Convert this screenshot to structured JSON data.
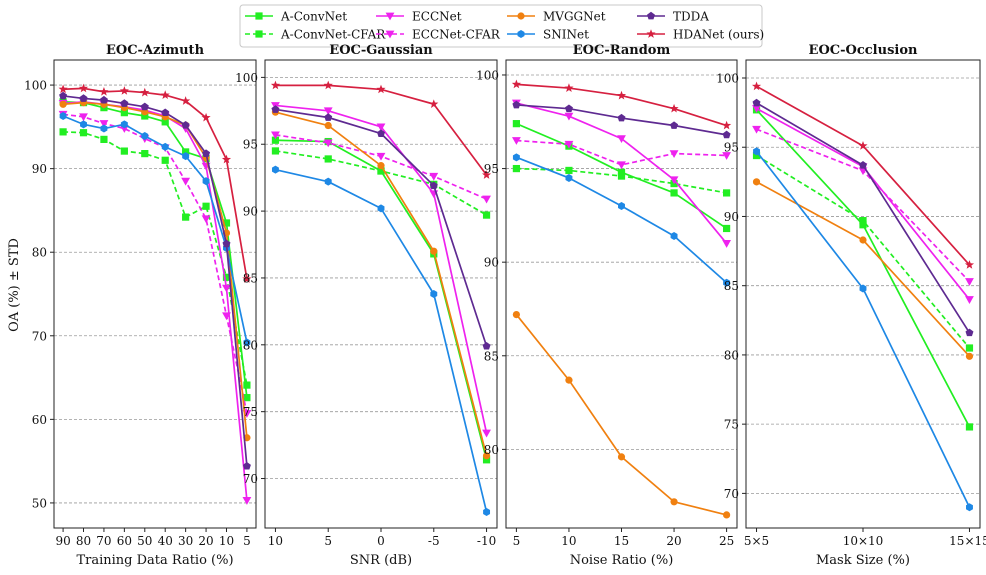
{
  "ylabel": "OA (%) ± STD",
  "legend": {
    "placement": "top-center",
    "columns": 4,
    "entries": [
      {
        "name": "A-ConvNet",
        "color": "#22ee22",
        "dash": false,
        "marker": "square"
      },
      {
        "name": "A-ConvNet-CFAR",
        "color": "#22ee22",
        "dash": true,
        "marker": "square"
      },
      {
        "name": "ECCNet",
        "color": "#ee22ee",
        "dash": false,
        "marker": "triangle-down"
      },
      {
        "name": "ECCNet-CFAR",
        "color": "#ee22ee",
        "dash": true,
        "marker": "triangle-down"
      },
      {
        "name": "MVGGNet",
        "color": "#f08010",
        "dash": false,
        "marker": "circle"
      },
      {
        "name": "SNINet",
        "color": "#1e88e5",
        "dash": false,
        "marker": "hexagon"
      },
      {
        "name": "TDDA",
        "color": "#5e2a91",
        "dash": false,
        "marker": "pentagon"
      },
      {
        "name": "HDANet (ours)",
        "color": "#d62040",
        "dash": false,
        "marker": "star"
      }
    ]
  },
  "chart_data": [
    {
      "type": "line",
      "title": "EOC-Azimuth",
      "xlabel": "Training Data Ratio (%)",
      "ylabel": "OA (%) ± STD",
      "categories": [
        "90",
        "80",
        "70",
        "60",
        "50",
        "40",
        "30",
        "20",
        "10",
        "5"
      ],
      "ylim": [
        47,
        103
      ],
      "yticks": [
        50,
        60,
        70,
        80,
        90,
        100
      ],
      "grid": "y-dashed",
      "series": [
        {
          "name": "A-ConvNet",
          "values": [
            98.0,
            97.9,
            97.3,
            96.7,
            96.3,
            95.6,
            92.0,
            91.2,
            83.5,
            62.6
          ]
        },
        {
          "name": "A-ConvNet-CFAR",
          "values": [
            94.4,
            94.3,
            93.5,
            92.1,
            91.8,
            91.0,
            84.2,
            85.5,
            77.0,
            64.1
          ]
        },
        {
          "name": "ECCNet",
          "values": [
            97.8,
            98.0,
            97.7,
            97.4,
            97.0,
            96.3,
            94.8,
            90.3,
            75.7,
            50.3
          ]
        },
        {
          "name": "ECCNet-CFAR",
          "values": [
            96.5,
            96.2,
            95.4,
            94.8,
            93.6,
            92.5,
            88.5,
            84.0,
            72.4,
            60.7
          ]
        },
        {
          "name": "MVGGNet",
          "values": [
            97.7,
            97.9,
            97.7,
            97.3,
            96.8,
            96.2,
            95.2,
            91.3,
            82.3,
            57.8
          ]
        },
        {
          "name": "SNINet",
          "values": [
            96.3,
            95.3,
            94.8,
            95.3,
            93.9,
            92.6,
            91.5,
            88.5,
            80.5,
            69.2
          ]
        },
        {
          "name": "TDDA",
          "values": [
            98.7,
            98.4,
            98.2,
            97.8,
            97.4,
            96.7,
            95.2,
            91.8,
            81.0,
            54.4
          ]
        },
        {
          "name": "HDANet (ours)",
          "values": [
            99.5,
            99.6,
            99.2,
            99.3,
            99.1,
            98.8,
            98.1,
            96.1,
            91.1,
            76.8
          ]
        }
      ]
    },
    {
      "type": "line",
      "title": "EOC-Gaussian",
      "xlabel": "SNR (dB)",
      "categories": [
        "10",
        "5",
        "0",
        "-5",
        "-10"
      ],
      "ylim": [
        66.3,
        101.3
      ],
      "yticks": [
        70,
        75,
        80,
        85,
        90,
        95,
        100
      ],
      "grid": "y-dashed",
      "series": [
        {
          "name": "A-ConvNet",
          "values": [
            95.3,
            95.2,
            93.0,
            86.8,
            71.4
          ]
        },
        {
          "name": "A-ConvNet-CFAR",
          "values": [
            94.5,
            93.9,
            93.0,
            92.0,
            89.7
          ]
        },
        {
          "name": "ECCNet",
          "values": [
            97.9,
            97.5,
            96.3,
            91.3,
            73.4
          ]
        },
        {
          "name": "ECCNet-CFAR",
          "values": [
            95.7,
            95.1,
            94.1,
            92.6,
            90.9
          ]
        },
        {
          "name": "MVGGNet",
          "values": [
            97.4,
            96.4,
            93.4,
            87.0,
            71.7
          ]
        },
        {
          "name": "SNINet",
          "values": [
            93.1,
            92.2,
            90.2,
            83.8,
            67.5
          ]
        },
        {
          "name": "TDDA",
          "values": [
            97.6,
            97.0,
            95.8,
            91.9,
            79.9
          ]
        },
        {
          "name": "HDANet (ours)",
          "values": [
            99.4,
            99.4,
            99.1,
            98.0,
            92.7
          ]
        }
      ]
    },
    {
      "type": "line",
      "title": "EOC-Random",
      "xlabel": "Noise Ratio (%)",
      "categories": [
        "5",
        "10",
        "15",
        "20",
        "25"
      ],
      "ylim": [
        75.8,
        100.8
      ],
      "yticks": [
        80,
        85,
        90,
        95,
        100
      ],
      "grid": "y-dashed",
      "series": [
        {
          "name": "A-ConvNet",
          "values": [
            97.4,
            96.2,
            94.8,
            93.7,
            91.8
          ]
        },
        {
          "name": "A-ConvNet-CFAR",
          "values": [
            95.0,
            94.9,
            94.6,
            94.2,
            93.7
          ]
        },
        {
          "name": "ECCNet",
          "values": [
            98.5,
            97.8,
            96.6,
            94.4,
            91.0
          ]
        },
        {
          "name": "ECCNet-CFAR",
          "values": [
            96.5,
            96.3,
            95.2,
            95.8,
            95.7
          ]
        },
        {
          "name": "MVGGNet",
          "values": [
            87.2,
            83.7,
            79.6,
            77.2,
            76.5
          ]
        },
        {
          "name": "SNINet",
          "values": [
            95.6,
            94.5,
            93.0,
            91.4,
            88.9
          ]
        },
        {
          "name": "TDDA",
          "values": [
            98.4,
            98.2,
            97.7,
            97.3,
            96.8
          ]
        },
        {
          "name": "HDANet (ours)",
          "values": [
            99.5,
            99.3,
            98.9,
            98.2,
            97.3
          ]
        }
      ]
    },
    {
      "type": "line",
      "title": "EOC-Occlusion",
      "xlabel": "Mask Size (%)",
      "categories": [
        "5×5",
        "10×10",
        "15×15"
      ],
      "ylim": [
        67.5,
        101.3
      ],
      "yticks": [
        70,
        75,
        80,
        85,
        90,
        95,
        100
      ],
      "grid": "y-dashed",
      "series": [
        {
          "name": "A-ConvNet",
          "values": [
            97.7,
            89.4,
            74.8
          ]
        },
        {
          "name": "A-ConvNet-CFAR",
          "values": [
            94.4,
            89.7,
            80.5
          ]
        },
        {
          "name": "ECCNet",
          "values": [
            97.8,
            93.6,
            84.0
          ]
        },
        {
          "name": "ECCNet-CFAR",
          "values": [
            96.3,
            93.3,
            85.3
          ]
        },
        {
          "name": "MVGGNet",
          "values": [
            92.5,
            88.3,
            79.9
          ]
        },
        {
          "name": "SNINet",
          "values": [
            94.7,
            84.8,
            69.0
          ]
        },
        {
          "name": "TDDA",
          "values": [
            98.2,
            93.7,
            81.6
          ]
        },
        {
          "name": "HDANet (ours)",
          "values": [
            99.4,
            95.1,
            86.5
          ]
        }
      ]
    }
  ]
}
